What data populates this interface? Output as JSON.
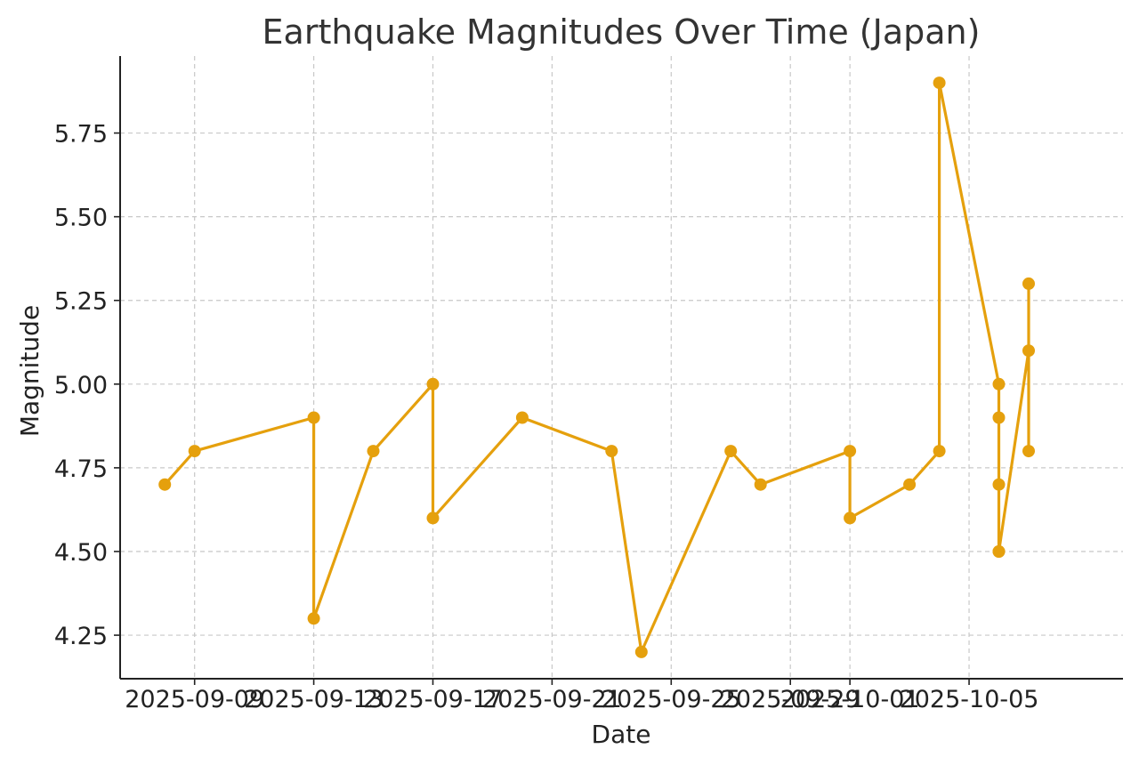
{
  "chart_data": {
    "type": "line",
    "title": "Earthquake Magnitudes Over Time (Japan)",
    "xlabel": "Date",
    "ylabel": "Magnitude",
    "x_axis_type": "date",
    "xlim": [
      "2025-09-06T12:00",
      "2025-10-10T04:00"
    ],
    "ylim": [
      4.12,
      5.98
    ],
    "x_ticks": [
      "2025-09-09",
      "2025-09-13",
      "2025-09-17",
      "2025-09-21",
      "2025-09-25",
      "2025-09-29",
      "2025-10-01",
      "2025-10-05"
    ],
    "y_ticks": [
      "4.25",
      "4.50",
      "4.75",
      "5.00",
      "5.25",
      "5.50",
      "5.75"
    ],
    "grid": true,
    "line_color": "#E5A00D",
    "series": [
      {
        "x": [
          "2025-09-08",
          "2025-09-09",
          "2025-09-13",
          "2025-09-13",
          "2025-09-15",
          "2025-09-17",
          "2025-09-17",
          "2025-09-20",
          "2025-09-23",
          "2025-09-24",
          "2025-09-27",
          "2025-09-28",
          "2025-10-01",
          "2025-10-01",
          "2025-10-03",
          "2025-10-04",
          "2025-10-04",
          "2025-10-06",
          "2025-10-06",
          "2025-10-06",
          "2025-10-06",
          "2025-10-06",
          "2025-10-07",
          "2025-10-07",
          "2025-10-07"
        ],
        "y": [
          4.7,
          4.8,
          4.9,
          4.3,
          4.8,
          5.0,
          4.6,
          4.9,
          4.8,
          4.2,
          4.8,
          4.7,
          4.8,
          4.6,
          4.7,
          4.8,
          5.9,
          5.0,
          4.9,
          4.7,
          4.5,
          4.5,
          5.1,
          5.3,
          4.8
        ]
      }
    ]
  }
}
